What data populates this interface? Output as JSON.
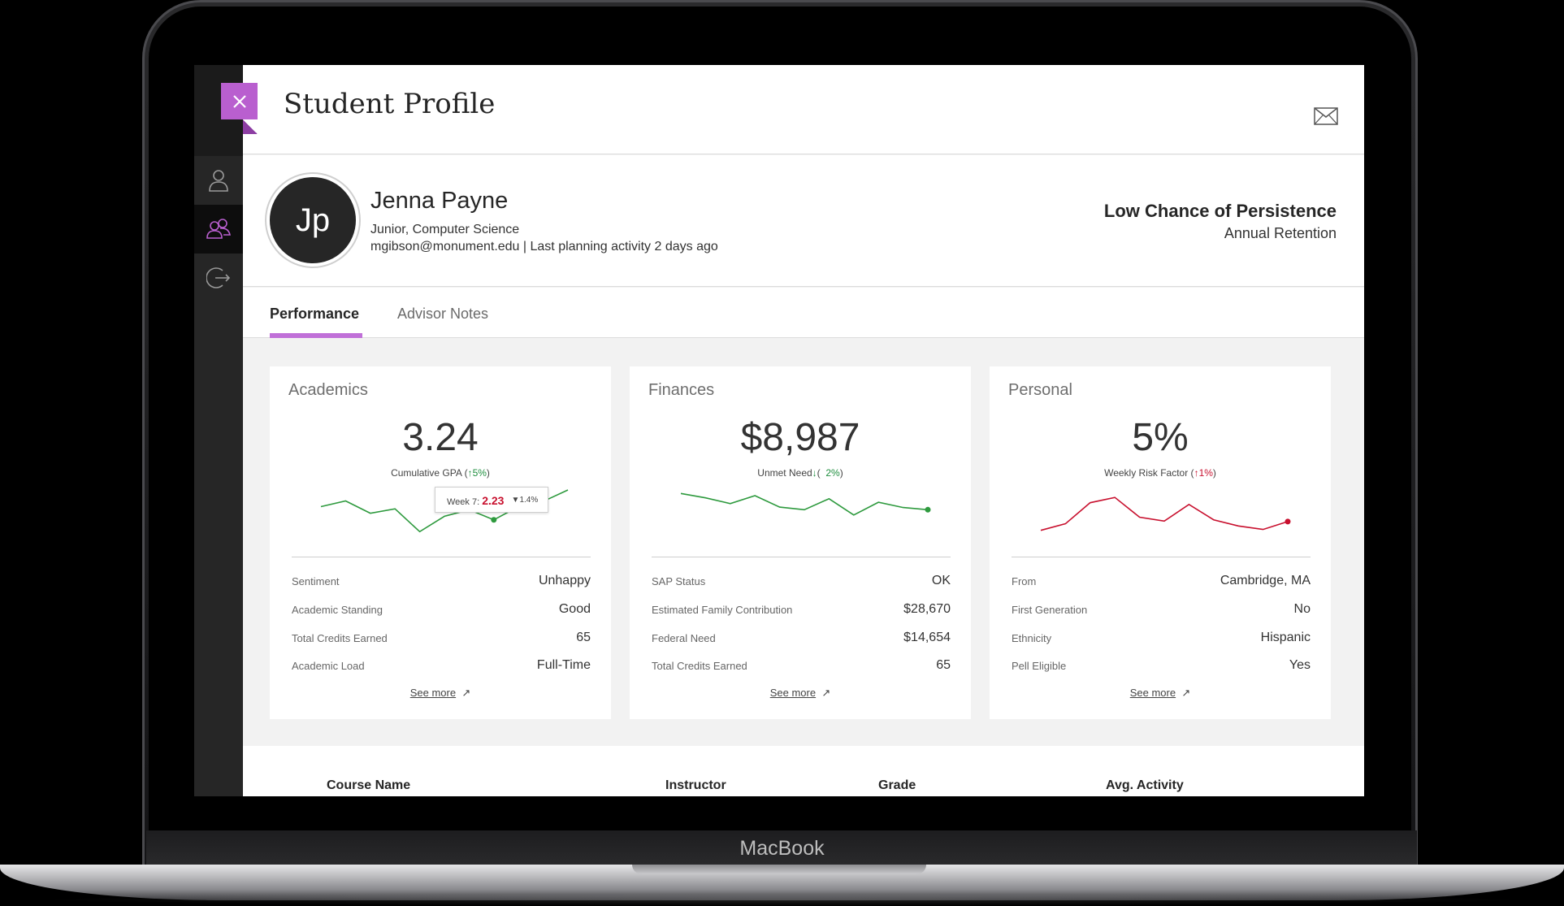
{
  "device": {
    "brand": "MacBook"
  },
  "header": {
    "title": "Student Profile"
  },
  "student": {
    "initials": "Jp",
    "name": "Jenna Payne",
    "program": "Junior, Computer Science",
    "meta": "mgibson@monument.edu | Last planning activity 2 days ago",
    "risk_title": "Low Chance of Persistence",
    "risk_sub": "Annual Retention"
  },
  "tabs": [
    {
      "label": "Performance",
      "active": true
    },
    {
      "label": "Advisor Notes",
      "active": false
    }
  ],
  "cards": [
    {
      "title": "Academics",
      "metric": "3.24",
      "caption": "Cumulative GPA",
      "change": "5%",
      "change_direction": "up",
      "change_color": "#1e8e3e",
      "line_color": "#2e9a3e",
      "trend": [
        0.62,
        0.75,
        0.47,
        0.57,
        0.05,
        0.4,
        0.55,
        0.32,
        0.62,
        0.74,
        1.0
      ],
      "tooltip": {
        "label": "Week 7:",
        "value": "2.23",
        "delta": "1.4%"
      },
      "rows": [
        {
          "label": "Sentiment",
          "value": "Unhappy"
        },
        {
          "label": "Academic Standing",
          "value": "Good"
        },
        {
          "label": "Total Credits Earned",
          "value": "65"
        },
        {
          "label": "Academic Load",
          "value": "Full-Time"
        }
      ],
      "see_more": "See more"
    },
    {
      "title": "Finances",
      "metric": "$8,987",
      "caption": "Unmet Need",
      "change": "2%",
      "change_direction": "down",
      "change_color": "#1e8e3e",
      "line_color": "#2e9a3e",
      "trend": [
        0.92,
        0.82,
        0.69,
        0.87,
        0.61,
        0.55,
        0.8,
        0.43,
        0.72,
        0.6,
        0.55
      ],
      "rows": [
        {
          "label": "SAP Status",
          "value": "OK"
        },
        {
          "label": "Estimated Family Contribution",
          "value": "$28,670"
        },
        {
          "label": "Federal Need",
          "value": "$14,654"
        },
        {
          "label": "Total Credits Earned",
          "value": "65"
        }
      ],
      "see_more": "See more"
    },
    {
      "title": "Personal",
      "metric": "5%",
      "caption": "Weekly Risk Factor",
      "change": "1%",
      "change_direction": "up",
      "change_color": "#c8102e",
      "line_color": "#c8102e",
      "trend": [
        0.08,
        0.23,
        0.71,
        0.83,
        0.38,
        0.29,
        0.67,
        0.32,
        0.18,
        0.1,
        0.28
      ],
      "rows": [
        {
          "label": "From",
          "value": "Cambridge, MA"
        },
        {
          "label": "First Generation",
          "value": "No"
        },
        {
          "label": "Ethnicity",
          "value": "Hispanic"
        },
        {
          "label": "Pell Eligible",
          "value": "Yes"
        }
      ],
      "see_more": "See more"
    }
  ],
  "course_table": {
    "headers": [
      "Course Name",
      "Instructor",
      "Grade",
      "Avg. Activity"
    ]
  },
  "icons": {
    "close": "close-icon",
    "mail": "mail-icon",
    "profile": "user-icon",
    "students": "users-icon",
    "logout": "logout-icon",
    "external": "external-link-icon"
  },
  "colors": {
    "accent": "#b95fcf",
    "tab_underline": "#c070d8",
    "positive": "#1e8e3e",
    "negative": "#c8102e"
  }
}
